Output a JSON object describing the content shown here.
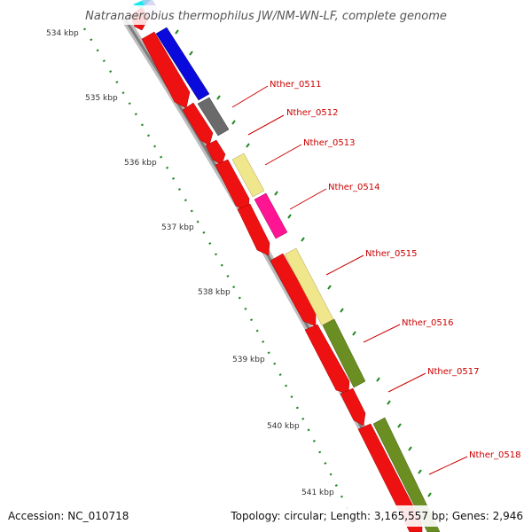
{
  "title": "Natranaerobius thermophilus JW/NM-WN-LF, complete genome",
  "footer": {
    "accession": "Accession: NC_010718",
    "summary": "Topology: circular; Length: 3,165,557 bp; Genes: 2,946"
  },
  "scale_labels": [
    "534 kbp",
    "535 kbp",
    "536 kbp",
    "537 kbp",
    "538 kbp",
    "539 kbp",
    "540 kbp",
    "541 kbp"
  ],
  "gene_labels": [
    "Nther_0511",
    "Nther_0512",
    "Nther_0513",
    "Nther_0514",
    "Nther_0515",
    "Nther_0516",
    "Nther_0517",
    "Nther_0518"
  ],
  "colors": {
    "backbone": "#8a8a8a",
    "forward_strand": "#ee1111",
    "scale_dots": "#228822",
    "label": "#cc0000",
    "cog_blue": "#0a0adc",
    "cog_gray": "#6a6a6a",
    "cog_khaki": "#f0e68c",
    "cog_magenta": "#ff1493",
    "cog_olive": "#6b8e23",
    "cog_cyan": "#00e5ee"
  }
}
